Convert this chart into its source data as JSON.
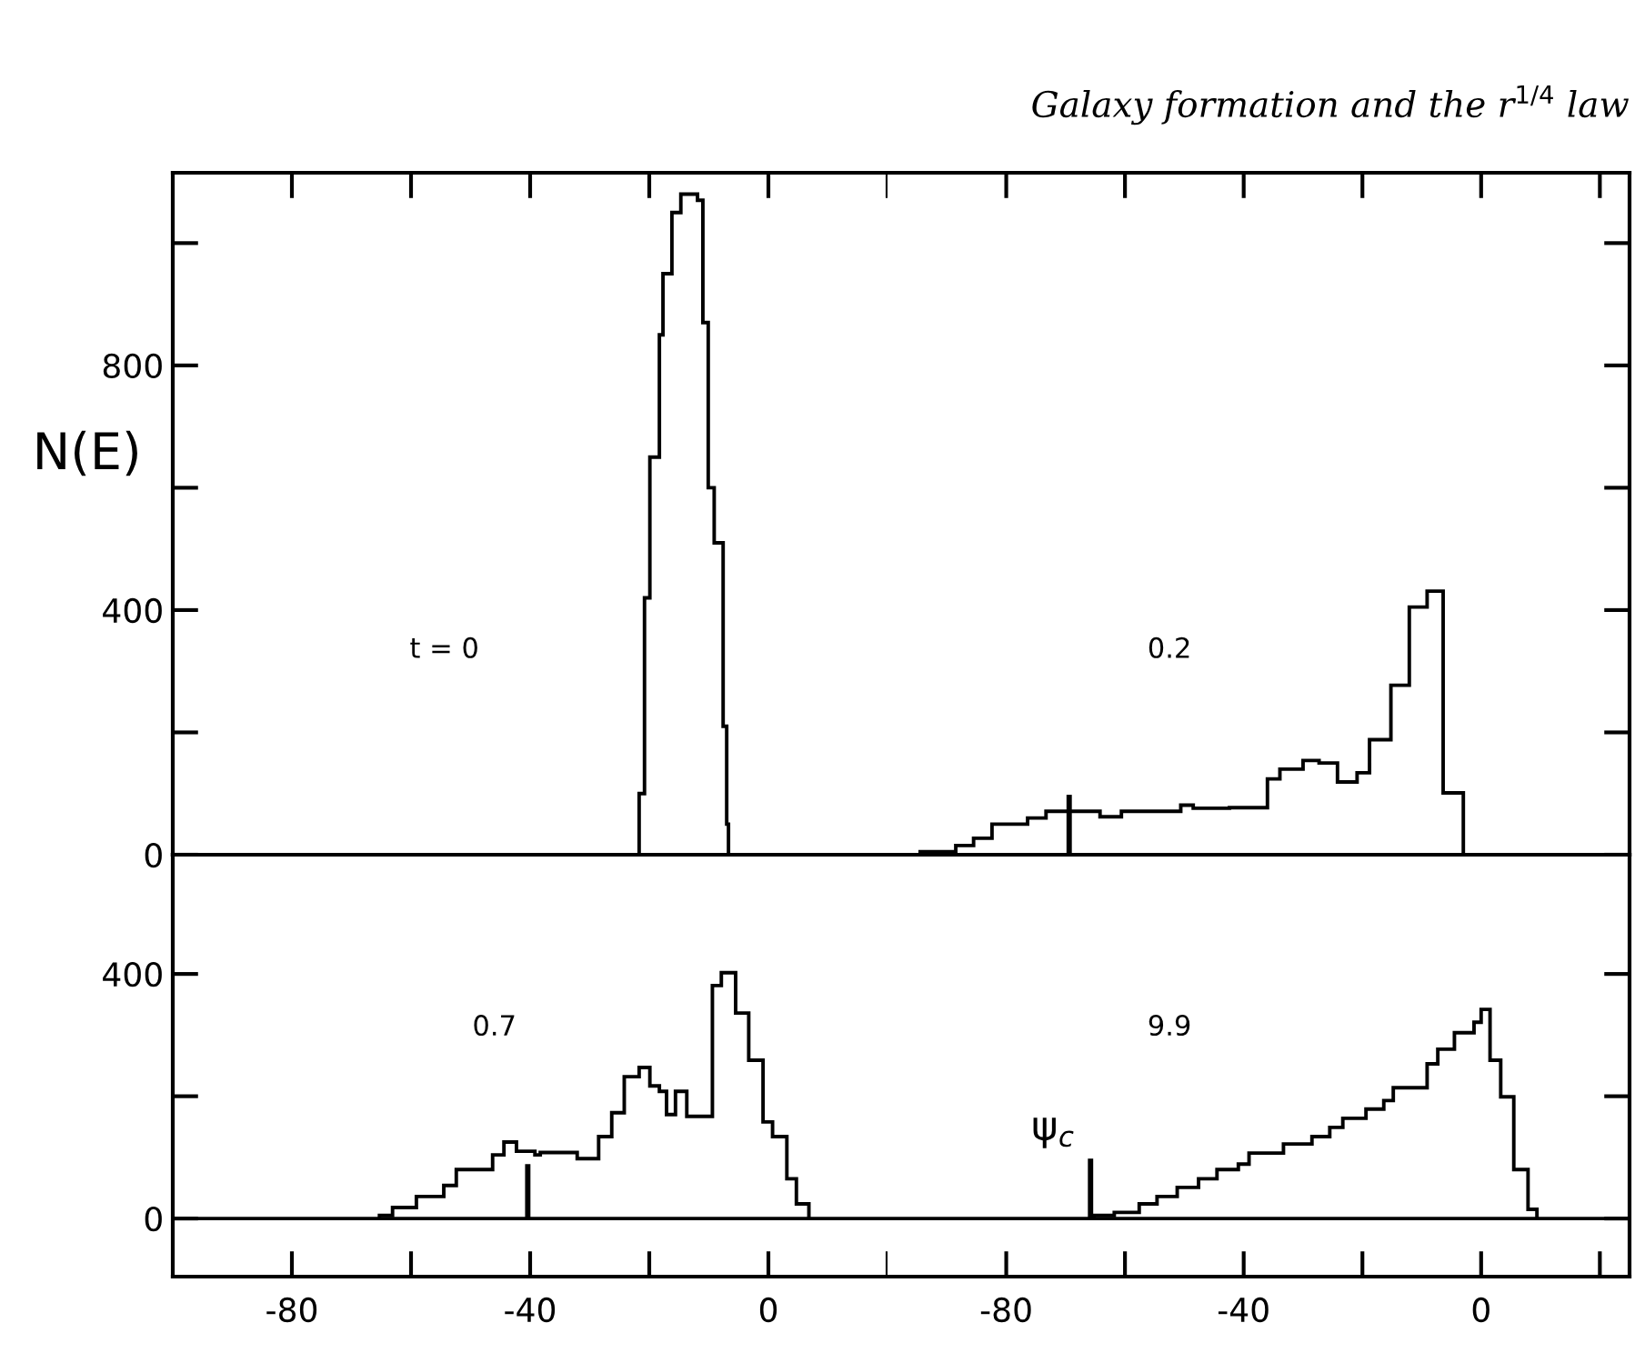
{
  "chart_data": [
    {
      "type": "histogram",
      "ylabel": "N(E)",
      "annotations": [
        "t = 0"
      ],
      "tick_labels": "y",
      "bins": [
        -21.7,
        -20.8,
        -19.9,
        -18.3,
        -17.7,
        -16.2,
        -14.7,
        -13.1,
        -11.9,
        -11.0,
        -10.1,
        -9.1,
        -7.6,
        -7.0,
        -6.7
      ],
      "values": [
        100,
        420,
        650,
        850,
        950,
        1050,
        1080,
        1080,
        1070,
        870,
        600,
        510,
        210,
        50
      ],
      "color": "#000000",
      "xlim": [
        -100,
        20
      ],
      "xticks": [
        -80,
        {
          "value": -60,
          "label": null
        },
        -40,
        {
          "value": -20,
          "label": null
        },
        0,
        {
          "value": 20,
          "label": null
        }
      ],
      "ylim": [
        0,
        1115
      ],
      "yticks": [
        0,
        {
          "value": 200,
          "label": null
        },
        400,
        {
          "value": 600,
          "label": null
        },
        800,
        {
          "value": 1000,
          "label": null
        }
      ]
    },
    {
      "type": "histogram",
      "title": "Galaxy formation and the r$^{1/4}$ law",
      "annotations": [
        "0.2"
      ],
      "tick_labels": false,
      "bins": [
        -94.5,
        -88.5,
        -85.5,
        -82.4,
        -76.4,
        -73.3,
        -64.2,
        -60.6,
        -50.6,
        -48.5,
        -42.4,
        -39.4,
        -36.0,
        -33.9,
        -30.0,
        -27.3,
        -24.2,
        -20.9,
        -18.8,
        -15.2,
        -12.1,
        -9.1,
        -6.4,
        -3.0
      ],
      "values": [
        5,
        15,
        27,
        50,
        60,
        71,
        62,
        71,
        81,
        76,
        77,
        77,
        124,
        140,
        154,
        150,
        119,
        134,
        188,
        277,
        405,
        431,
        101
      ],
      "color": "#000000",
      "series": [
        {
          "type": "bar",
          "x": [
            -69.4
          ],
          "values": [
            98
          ],
          "color": "#000000"
        }
      ],
      "xlim": [
        -100,
        25
      ],
      "xticks": [
        -80,
        {
          "value": -60,
          "label": null
        },
        -40,
        {
          "value": -20,
          "label": null
        },
        0,
        {
          "value": 20,
          "label": null
        }
      ],
      "ylim": [
        0,
        1115
      ],
      "yticks": [
        0,
        {
          "value": 200,
          "label": null
        },
        400,
        {
          "value": 600,
          "label": null
        },
        800,
        {
          "value": 1000,
          "label": null
        }
      ]
    },
    {
      "type": "histogram",
      "annotations": [
        "0.7"
      ],
      "bins": [
        -65.3,
        -63.1,
        -59.1,
        -54.5,
        -52.4,
        -46.3,
        -44.4,
        -42.3,
        -39.2,
        -38.3,
        -32.1,
        -28.5,
        -26.3,
        -24.2,
        -21.7,
        -19.9,
        -18.3,
        -17.1,
        -15.6,
        -13.7,
        -9.4,
        -7.9,
        -5.5,
        -3.3,
        -0.9,
        0.7,
        3.1,
        4.7,
        6.8
      ],
      "values": [
        5,
        18,
        36,
        54,
        80,
        104,
        125,
        110,
        104,
        108,
        98,
        134,
        173,
        232,
        247,
        217,
        208,
        170,
        208,
        167,
        381,
        402,
        336,
        259,
        158,
        134,
        65,
        24
      ],
      "color": "#000000",
      "series": [
        {
          "type": "bar",
          "x": [
            -40.4
          ],
          "values": [
            89
          ],
          "color": "#000000"
        }
      ],
      "ref_lines": [
        {
          "axis": "y",
          "value": 0,
          "color": "#000000"
        }
      ],
      "xlim": [
        -100,
        20
      ],
      "xticks": [
        -80,
        {
          "value": -60,
          "label": null
        },
        -40,
        {
          "value": -20,
          "label": null
        },
        0,
        {
          "value": 20,
          "label": null
        }
      ],
      "ylim": [
        -95,
        595
      ],
      "yticks": [
        0,
        {
          "value": 200,
          "label": null
        },
        400
      ]
    },
    {
      "type": "histogram",
      "annotations": [
        "9.9",
        {
          "text": "ψ$_{c}$",
          "x": -65.8,
          "y": 98
        }
      ],
      "tick_labels": "x",
      "bins": [
        -65.2,
        -61.8,
        -57.6,
        -54.6,
        -51.2,
        -47.6,
        -44.5,
        -40.9,
        -39.1,
        -33.3,
        -28.5,
        -25.5,
        -23.3,
        -19.4,
        -16.4,
        -14.8,
        -11.8,
        -9.1,
        -7.3,
        -4.5,
        -1.2,
        0,
        1.5,
        3.3,
        5.5,
        7.9,
        9.4
      ],
      "values": [
        5,
        10,
        24,
        36,
        51,
        65,
        80,
        89,
        107,
        122,
        134,
        149,
        164,
        179,
        193,
        214,
        214,
        253,
        277,
        304,
        321,
        342,
        259,
        199,
        80,
        15
      ],
      "color": "#000000",
      "series": [
        {
          "type": "bar",
          "x": [
            -65.8
          ],
          "values": [
            98
          ],
          "color": "#000000"
        }
      ],
      "ref_lines": [
        {
          "axis": "y",
          "value": 0,
          "color": "#000000"
        }
      ],
      "xlim": [
        -100,
        25
      ],
      "xticks": [
        -80,
        {
          "value": -60,
          "label": null
        },
        -40,
        {
          "value": -20,
          "label": null
        },
        0,
        {
          "value": 20,
          "label": null
        }
      ],
      "ylim": [
        -95,
        595
      ],
      "yticks": [
        0,
        {
          "value": 200,
          "label": null
        },
        400
      ]
    }
  ]
}
